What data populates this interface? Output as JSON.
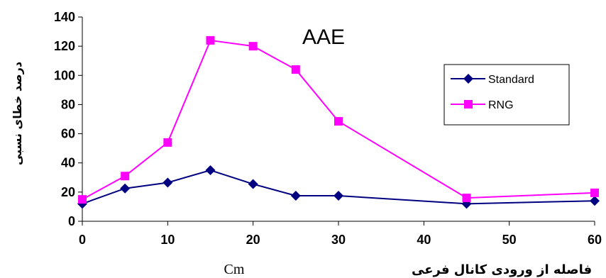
{
  "chart_data": {
    "type": "line",
    "title": "AAE",
    "xlabel": "فاصله از ورودی کانال فرعی",
    "xlabel_unit": "Cm",
    "ylabel": "درصد خطای نسبی",
    "xlim": [
      0,
      60
    ],
    "ylim": [
      0,
      140
    ],
    "xticks": [
      0,
      10,
      20,
      30,
      40,
      50,
      60
    ],
    "yticks": [
      0,
      20,
      40,
      60,
      80,
      100,
      120,
      140
    ],
    "grid": false,
    "legend_position": "top-right",
    "x": [
      0,
      5,
      10,
      15,
      20,
      25,
      30,
      45,
      60
    ],
    "series": [
      {
        "name": "Standard",
        "values": [
          12,
          22.5,
          26.5,
          35,
          25.5,
          17.5,
          17.5,
          12,
          14
        ],
        "color": "#000080",
        "marker": "diamond"
      },
      {
        "name": "RNG",
        "values": [
          15,
          31,
          54,
          124,
          120,
          104,
          68.5,
          16,
          19.5
        ],
        "color": "#ff00ff",
        "marker": "square"
      }
    ]
  }
}
